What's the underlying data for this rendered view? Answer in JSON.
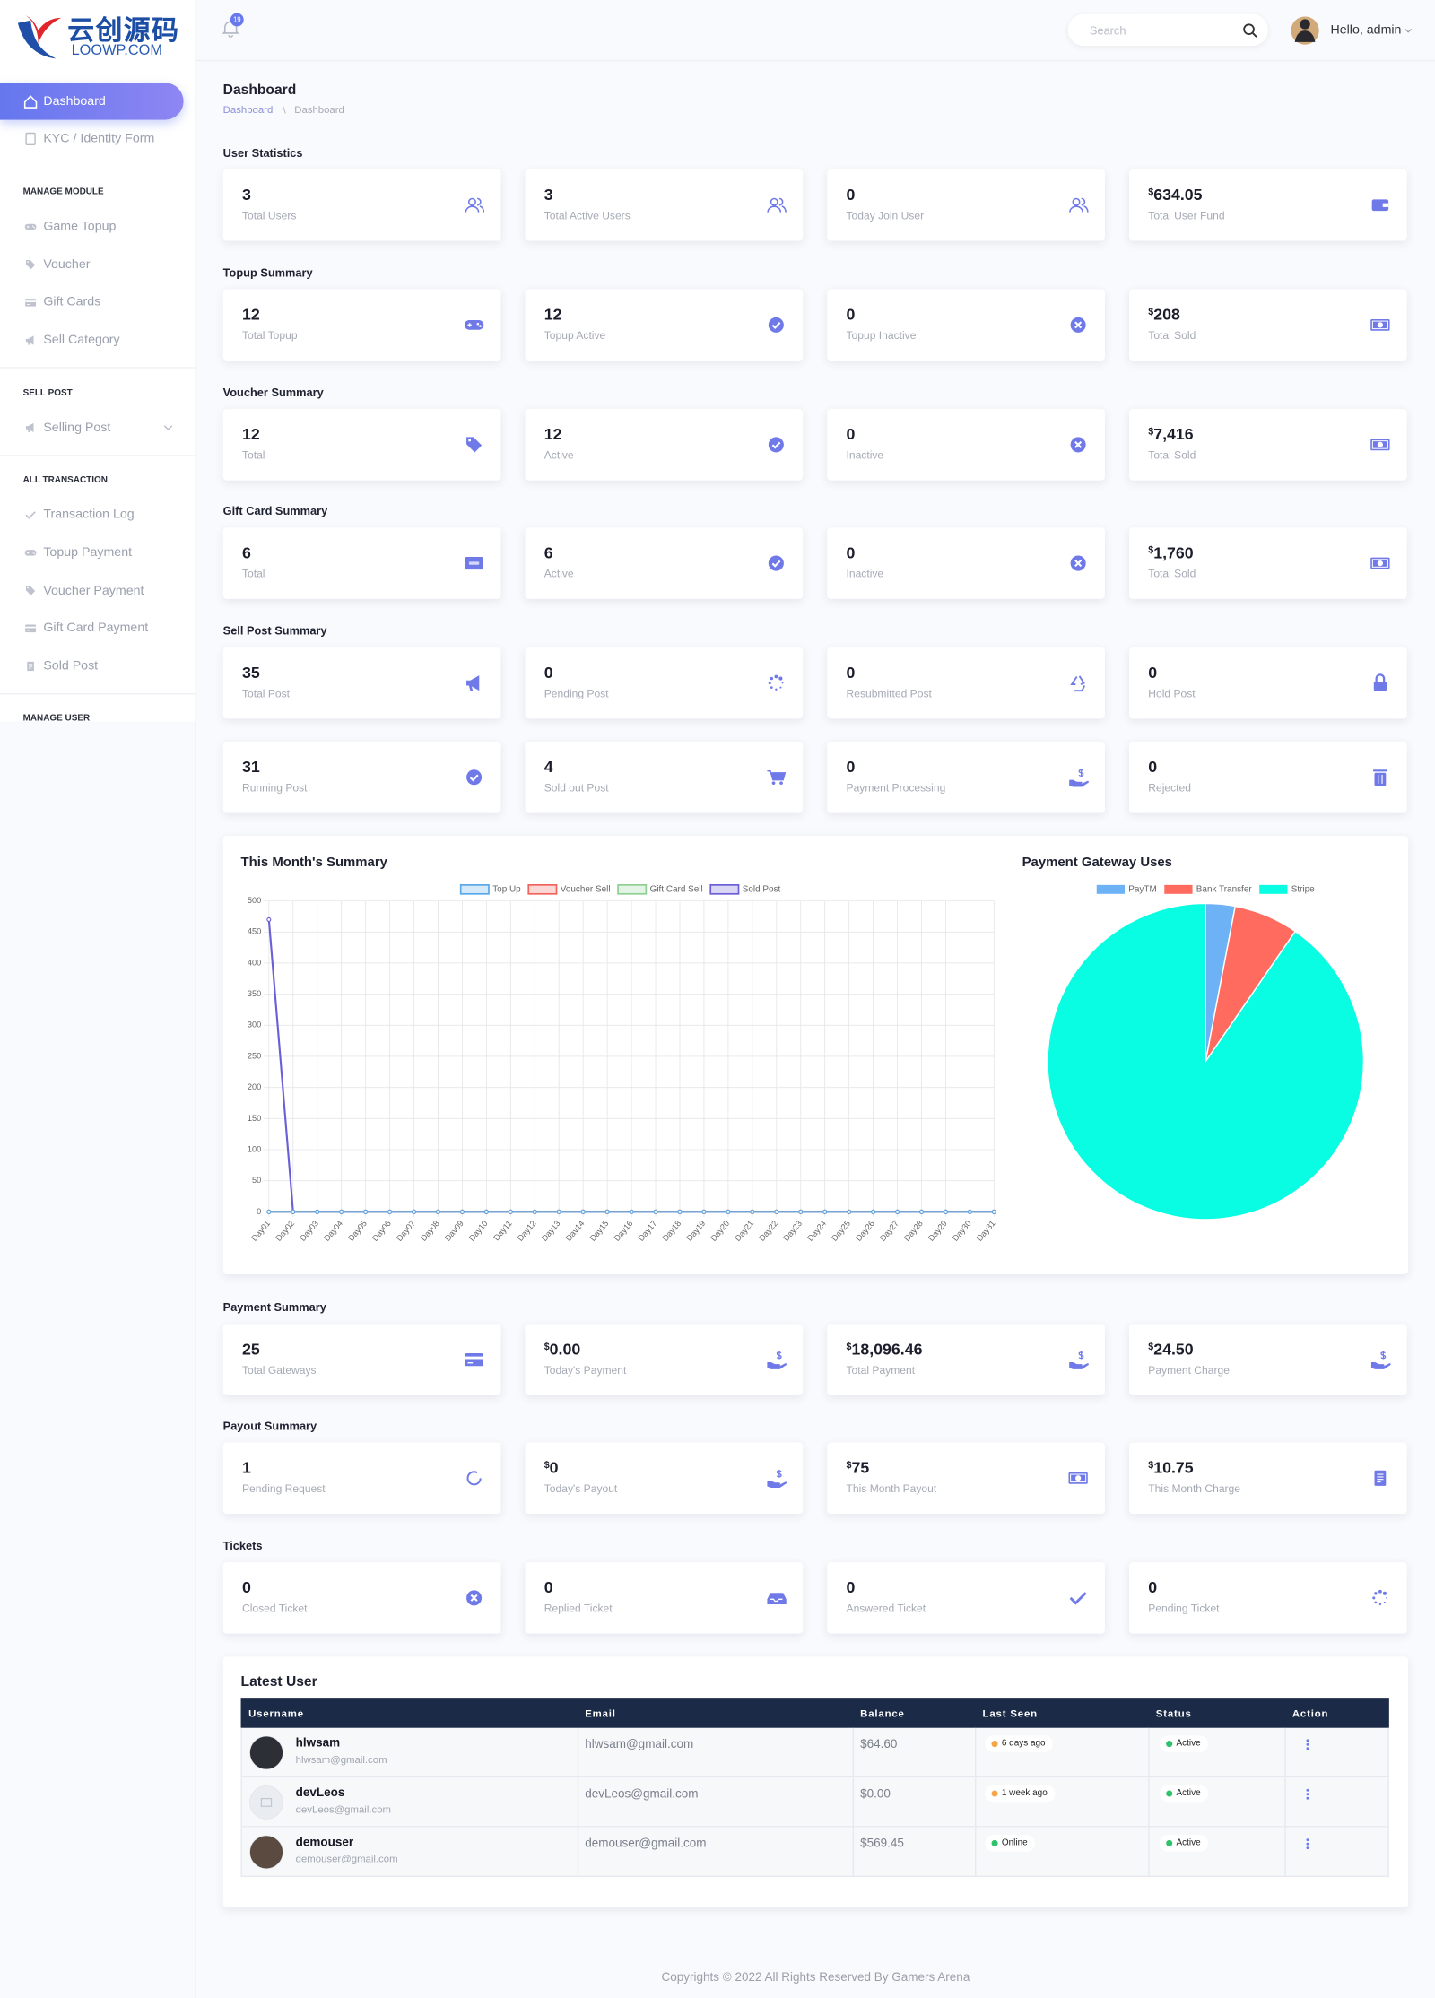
{
  "sidebar": {
    "logo": {
      "title": "云创源码",
      "subtitle": "LOOWP.COM"
    },
    "menu": [
      "Dashboard",
      "KYC / Identity Form"
    ],
    "groups": [
      {
        "heading": "MANAGE MODULE",
        "items": [
          "Game Topup",
          "Voucher",
          "Gift Cards",
          "Sell Category"
        ]
      },
      {
        "heading": "SELL POST",
        "items": [
          "Selling Post"
        ]
      },
      {
        "heading": "ALL TRANSACTION",
        "items": [
          "Transaction Log",
          "Topup Payment",
          "Voucher Payment",
          "Gift Card Payment",
          "Sold Post"
        ]
      },
      {
        "heading": "MANAGE USER",
        "items": []
      }
    ]
  },
  "header": {
    "notifications": "19",
    "search_placeholder": "Search",
    "greeting": "Hello, admin"
  },
  "page": {
    "title": "Dashboard",
    "breadcrumb": [
      "Dashboard",
      "Dashboard"
    ]
  },
  "sections": [
    {
      "title": "User Statistics",
      "cards": [
        {
          "value": "3",
          "label": "Total Users"
        },
        {
          "value": "3",
          "label": "Total Active Users"
        },
        {
          "value": "0",
          "label": "Today Join User"
        },
        {
          "prefix": "$",
          "value": "634.05",
          "label": "Total User Fund"
        }
      ]
    },
    {
      "title": "Topup Summary",
      "cards": [
        {
          "value": "12",
          "label": "Total Topup"
        },
        {
          "value": "12",
          "label": "Topup Active"
        },
        {
          "value": "0",
          "label": "Topup Inactive"
        },
        {
          "prefix": "$",
          "value": "208",
          "label": "Total Sold"
        }
      ]
    },
    {
      "title": "Voucher Summary",
      "cards": [
        {
          "value": "12",
          "label": "Total"
        },
        {
          "value": "12",
          "label": "Active"
        },
        {
          "value": "0",
          "label": "Inactive"
        },
        {
          "prefix": "$",
          "value": "7,416",
          "label": "Total Sold"
        }
      ]
    },
    {
      "title": "Gift Card Summary",
      "cards": [
        {
          "value": "6",
          "label": "Total"
        },
        {
          "value": "6",
          "label": "Active"
        },
        {
          "value": "0",
          "label": "Inactive"
        },
        {
          "prefix": "$",
          "value": "1,760",
          "label": "Total Sold"
        }
      ]
    },
    {
      "title": "Sell Post Summary",
      "cards": [
        {
          "value": "35",
          "label": "Total Post"
        },
        {
          "value": "0",
          "label": "Pending Post"
        },
        {
          "value": "0",
          "label": "Resubmitted Post"
        },
        {
          "value": "0",
          "label": "Hold Post"
        },
        {
          "value": "31",
          "label": "Running Post"
        },
        {
          "value": "4",
          "label": "Sold out Post"
        },
        {
          "value": "0",
          "label": "Payment Processing"
        },
        {
          "value": "0",
          "label": "Rejected"
        }
      ]
    },
    {
      "title": "Payment Summary",
      "cards": [
        {
          "value": "25",
          "label": "Total Gateways"
        },
        {
          "prefix": "$",
          "value": "0.00",
          "label": "Today's Payment"
        },
        {
          "prefix": "$",
          "value": "18,096.46",
          "label": "Total Payment"
        },
        {
          "prefix": "$",
          "value": "24.50",
          "label": "Payment Charge"
        }
      ]
    },
    {
      "title": "Payout Summary",
      "cards": [
        {
          "value": "1",
          "label": "Pending Request"
        },
        {
          "prefix": "$",
          "value": "0",
          "label": "Today's Payout"
        },
        {
          "prefix": "$",
          "value": "75",
          "label": "This Month Payout"
        },
        {
          "prefix": "$",
          "value": "10.75",
          "label": "This Month Charge"
        }
      ]
    },
    {
      "title": "Tickets",
      "cards": [
        {
          "value": "0",
          "label": "Closed Ticket"
        },
        {
          "value": "0",
          "label": "Replied Ticket"
        },
        {
          "value": "0",
          "label": "Answered Ticket"
        },
        {
          "value": "0",
          "label": "Pending Ticket"
        }
      ]
    }
  ],
  "chart_data": [
    {
      "type": "line",
      "title": "This Month's Summary",
      "categories": [
        "Day01",
        "Day02",
        "Day03",
        "Day04",
        "Day05",
        "Day06",
        "Day07",
        "Day08",
        "Day09",
        "Day10",
        "Day11",
        "Day12",
        "Day13",
        "Day14",
        "Day15",
        "Day16",
        "Day17",
        "Day18",
        "Day19",
        "Day20",
        "Day21",
        "Day22",
        "Day23",
        "Day24",
        "Day25",
        "Day26",
        "Day27",
        "Day28",
        "Day29",
        "Day30",
        "Day31"
      ],
      "series": [
        {
          "name": "Top Up",
          "color": "#5aa9ea",
          "values": [
            0,
            0,
            0,
            0,
            0,
            0,
            0,
            0,
            0,
            0,
            0,
            0,
            0,
            0,
            0,
            0,
            0,
            0,
            0,
            0,
            0,
            0,
            0,
            0,
            0,
            0,
            0,
            0,
            0,
            0,
            0
          ]
        },
        {
          "name": "Voucher Sell",
          "color": "#f0645c",
          "values": [
            0,
            0,
            0,
            0,
            0,
            0,
            0,
            0,
            0,
            0,
            0,
            0,
            0,
            0,
            0,
            0,
            0,
            0,
            0,
            0,
            0,
            0,
            0,
            0,
            0,
            0,
            0,
            0,
            0,
            0,
            0
          ]
        },
        {
          "name": "Gift Card Sell",
          "color": "#8fcf96",
          "values": [
            0,
            0,
            0,
            0,
            0,
            0,
            0,
            0,
            0,
            0,
            0,
            0,
            0,
            0,
            0,
            0,
            0,
            0,
            0,
            0,
            0,
            0,
            0,
            0,
            0,
            0,
            0,
            0,
            0,
            0,
            0
          ]
        },
        {
          "name": "Sold Post",
          "color": "#6a5fd6",
          "values": [
            470,
            0,
            0,
            0,
            0,
            0,
            0,
            0,
            0,
            0,
            0,
            0,
            0,
            0,
            0,
            0,
            0,
            0,
            0,
            0,
            0,
            0,
            0,
            0,
            0,
            0,
            0,
            0,
            0,
            0,
            0
          ]
        }
      ],
      "ylim": [
        0,
        500
      ],
      "yticks": [
        0,
        50,
        100,
        150,
        200,
        250,
        300,
        350,
        400,
        450,
        500
      ],
      "grid": true,
      "legend": "top"
    },
    {
      "type": "pie",
      "title": "Payment Gateway Uses",
      "categories": [
        "PayTM",
        "Bank Transfer",
        "Stripe"
      ],
      "values": [
        3,
        6.6,
        90.4
      ],
      "colors": [
        "#6cb2f5",
        "#ff6b5e",
        "#08fde2"
      ],
      "legend": "top"
    }
  ],
  "latest_users": {
    "title": "Latest User",
    "columns": [
      "Username",
      "Email",
      "Balance",
      "Last Seen",
      "Status",
      "Action"
    ],
    "rows": [
      {
        "username": "hlwsam",
        "email": "hlwsam@gmail.com",
        "balance": "$64.60",
        "last_seen": "6 days ago",
        "last_seen_color": "#f5a64a",
        "status": "Active"
      },
      {
        "username": "devLeos",
        "email": "devLeos@gmail.com",
        "balance": "$0.00",
        "last_seen": "1 week ago",
        "last_seen_color": "#f5a64a",
        "status": "Active"
      },
      {
        "username": "demouser",
        "email": "demouser@gmail.com",
        "balance": "$569.45",
        "last_seen": "Online",
        "last_seen_color": "#2ec26a",
        "status": "Active"
      }
    ]
  },
  "footer": "Copyrights © 2022 All Rights Reserved By Gamers Arena"
}
